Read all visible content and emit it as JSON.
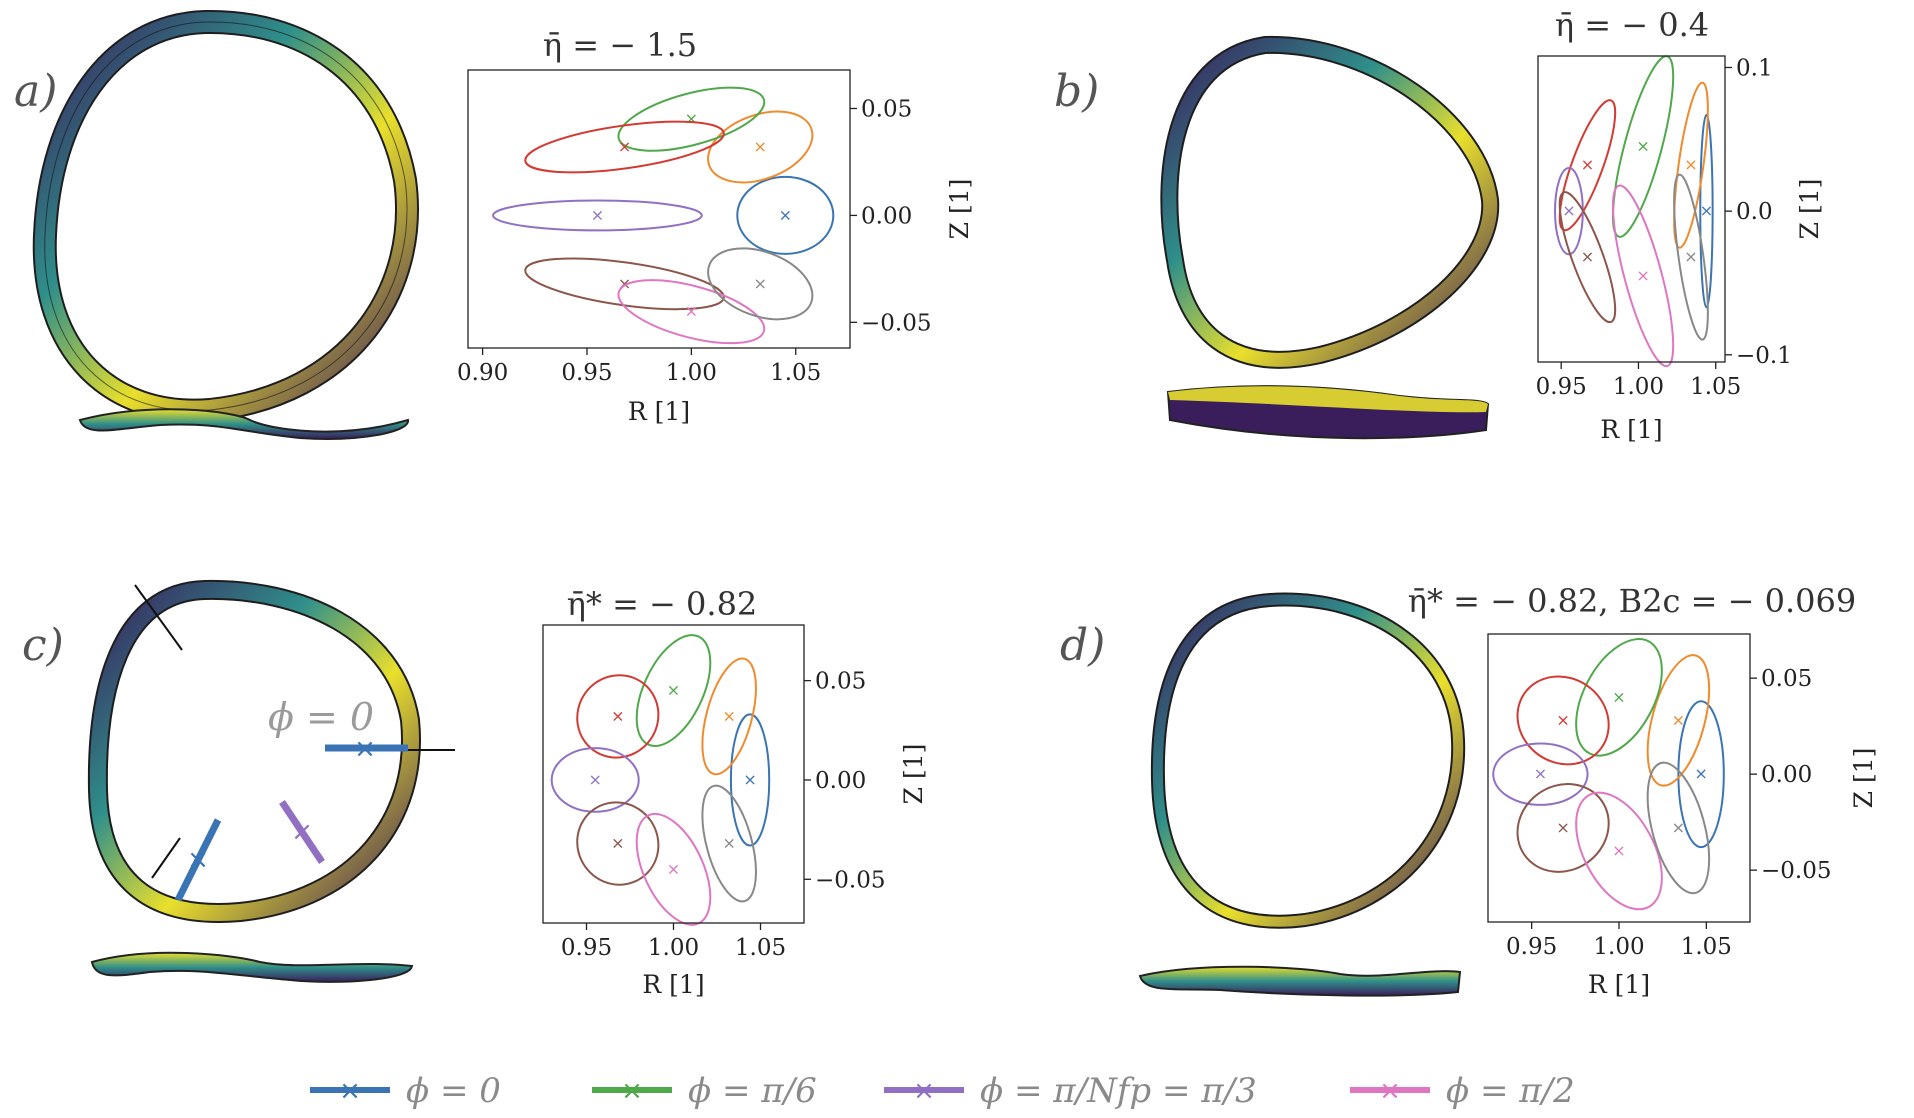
{
  "colors": {
    "blue": "#3a74b4",
    "orange": "#ef8b2c",
    "green": "#4fa84a",
    "red": "#d23b33",
    "purple": "#9170c4",
    "brown": "#8c564b",
    "pink": "#df76c2",
    "gray": "#888888",
    "stel_yellow": "#f2e22a",
    "stel_green": "#3fb98a",
    "stel_dark": "#3a1e5c"
  },
  "panels": [
    {
      "id": "a",
      "label": "a)",
      "title": "η̄ = − 1.5",
      "xlabel": "R [1]",
      "ylabel": "Z [1]",
      "xticks": [
        "0.90",
        "0.95",
        "1.00",
        "1.05"
      ],
      "yticks": [
        "0.05",
        "0.00",
        "−0.05"
      ],
      "xrange": [
        0.893,
        1.076
      ],
      "yrange": [
        -0.062,
        0.068
      ],
      "xtickvals": [
        0.9,
        0.95,
        1.0,
        1.05
      ],
      "ytickvals": [
        0.05,
        0.0,
        -0.05
      ],
      "shape": "ellipse",
      "ellipses": [
        {
          "color": "blue",
          "cx": 1.045,
          "cy": 0.0,
          "rx": 0.023,
          "ry": 0.018,
          "ang": 0
        },
        {
          "color": "orange",
          "cx": 1.033,
          "cy": 0.032,
          "rx": 0.026,
          "ry": 0.015,
          "ang": 20
        },
        {
          "color": "green",
          "cx": 1.0,
          "cy": 0.045,
          "rx": 0.036,
          "ry": 0.012,
          "ang": 15
        },
        {
          "color": "red",
          "cx": 0.968,
          "cy": 0.032,
          "rx": 0.048,
          "ry": 0.01,
          "ang": 8
        },
        {
          "color": "purple",
          "cx": 0.955,
          "cy": 0.0,
          "rx": 0.05,
          "ry": 0.007,
          "ang": 0
        },
        {
          "color": "brown",
          "cx": 0.968,
          "cy": -0.032,
          "rx": 0.048,
          "ry": 0.01,
          "ang": -8
        },
        {
          "color": "pink",
          "cx": 1.0,
          "cy": -0.045,
          "rx": 0.036,
          "ry": 0.012,
          "ang": -15
        },
        {
          "color": "gray",
          "cx": 1.033,
          "cy": -0.032,
          "rx": 0.026,
          "ry": 0.015,
          "ang": -20
        }
      ]
    },
    {
      "id": "b",
      "label": "b)",
      "title": "η̄ = − 0.4",
      "xlabel": "R [1]",
      "ylabel": "Z [1]",
      "xticks": [
        "0.95",
        "1.00",
        "1.05"
      ],
      "yticks": [
        "0.1",
        "0.0",
        "−0.1"
      ],
      "xrange": [
        0.935,
        1.056
      ],
      "yrange": [
        -0.105,
        0.108
      ],
      "xtickvals": [
        0.95,
        1.0,
        1.05
      ],
      "ytickvals": [
        0.1,
        0.0,
        -0.1
      ],
      "shape": "ellipse",
      "ellipses": [
        {
          "color": "blue",
          "cx": 1.044,
          "cy": 0.0,
          "rx": 0.004,
          "ry": 0.067,
          "ang": 0
        },
        {
          "color": "orange",
          "cx": 1.034,
          "cy": 0.032,
          "rx": 0.008,
          "ry": 0.058,
          "ang": -8
        },
        {
          "color": "green",
          "cx": 1.003,
          "cy": 0.045,
          "rx": 0.012,
          "ry": 0.065,
          "ang": -15
        },
        {
          "color": "red",
          "cx": 0.967,
          "cy": 0.032,
          "rx": 0.01,
          "ry": 0.048,
          "ang": -20
        },
        {
          "color": "purple",
          "cx": 0.955,
          "cy": 0.0,
          "rx": 0.009,
          "ry": 0.03,
          "ang": 0
        },
        {
          "color": "brown",
          "cx": 0.967,
          "cy": -0.032,
          "rx": 0.01,
          "ry": 0.048,
          "ang": 20
        },
        {
          "color": "pink",
          "cx": 1.003,
          "cy": -0.045,
          "rx": 0.012,
          "ry": 0.065,
          "ang": 15
        },
        {
          "color": "gray",
          "cx": 1.034,
          "cy": -0.032,
          "rx": 0.008,
          "ry": 0.058,
          "ang": 8
        }
      ]
    },
    {
      "id": "c",
      "label": "c)",
      "title": "η̄* = − 0.82",
      "xlabel": "R [1]",
      "ylabel": "Z [1]",
      "xticks": [
        "0.95",
        "1.00",
        "1.05"
      ],
      "yticks": [
        "0.05",
        "0.00",
        "−0.05"
      ],
      "xrange": [
        0.925,
        1.075
      ],
      "yrange": [
        -0.072,
        0.078
      ],
      "xtickvals": [
        0.95,
        1.0,
        1.05
      ],
      "ytickvals": [
        0.05,
        0.0,
        -0.05
      ],
      "shape": "ellipse",
      "ellipses": [
        {
          "color": "blue",
          "cx": 1.044,
          "cy": 0.0,
          "rx": 0.011,
          "ry": 0.033,
          "ang": 0
        },
        {
          "color": "orange",
          "cx": 1.032,
          "cy": 0.032,
          "rx": 0.013,
          "ry": 0.03,
          "ang": -15
        },
        {
          "color": "green",
          "cx": 1.0,
          "cy": 0.045,
          "rx": 0.017,
          "ry": 0.03,
          "ang": -25
        },
        {
          "color": "red",
          "cx": 0.968,
          "cy": 0.032,
          "rx": 0.023,
          "ry": 0.021,
          "ang": -35
        },
        {
          "color": "purple",
          "cx": 0.955,
          "cy": 0.0,
          "rx": 0.025,
          "ry": 0.016,
          "ang": 0
        },
        {
          "color": "brown",
          "cx": 0.968,
          "cy": -0.032,
          "rx": 0.023,
          "ry": 0.021,
          "ang": 35
        },
        {
          "color": "pink",
          "cx": 1.0,
          "cy": -0.045,
          "rx": 0.017,
          "ry": 0.03,
          "ang": 25
        },
        {
          "color": "gray",
          "cx": 1.032,
          "cy": -0.032,
          "rx": 0.013,
          "ry": 0.03,
          "ang": 15
        }
      ]
    },
    {
      "id": "d",
      "label": "d)",
      "title": "η̄* = − 0.82,    B2c = − 0.069",
      "xlabel": "R [1]",
      "ylabel": "Z [1]",
      "xticks": [
        "0.95",
        "1.00",
        "1.05"
      ],
      "yticks": [
        "0.05",
        "0.00",
        "−0.05"
      ],
      "xrange": [
        0.925,
        1.075
      ],
      "yrange": [
        -0.077,
        0.073
      ],
      "xtickvals": [
        0.95,
        1.0,
        1.05
      ],
      "ytickvals": [
        0.05,
        0.0,
        -0.05
      ],
      "shape": "ellipse",
      "ellipses": [
        {
          "color": "blue",
          "cx": 1.047,
          "cy": 0.0,
          "rx": 0.013,
          "ry": 0.038,
          "ang": 0
        },
        {
          "color": "orange",
          "cx": 1.034,
          "cy": 0.028,
          "rx": 0.015,
          "ry": 0.035,
          "ang": -15
        },
        {
          "color": "green",
          "cx": 1.0,
          "cy": 0.04,
          "rx": 0.02,
          "ry": 0.033,
          "ang": -28
        },
        {
          "color": "red",
          "cx": 0.968,
          "cy": 0.028,
          "rx": 0.027,
          "ry": 0.022,
          "ang": -35
        },
        {
          "color": "purple",
          "cx": 0.955,
          "cy": 0.0,
          "rx": 0.027,
          "ry": 0.016,
          "ang": 0
        },
        {
          "color": "brown",
          "cx": 0.968,
          "cy": -0.028,
          "rx": 0.027,
          "ry": 0.022,
          "ang": 35
        },
        {
          "color": "pink",
          "cx": 1.0,
          "cy": -0.04,
          "rx": 0.02,
          "ry": 0.033,
          "ang": 28
        },
        {
          "color": "gray",
          "cx": 1.034,
          "cy": -0.028,
          "rx": 0.015,
          "ry": 0.035,
          "ang": 15
        }
      ]
    }
  ],
  "annotations": {
    "phi0_label": "ϕ = 0"
  },
  "legend": [
    {
      "color": "blue",
      "label": "ϕ = 0"
    },
    {
      "color": "green",
      "label": "ϕ = π/6"
    },
    {
      "color": "purple",
      "label": "ϕ = π/Nfp = π/3"
    },
    {
      "color": "pink",
      "label": "ϕ = π/2"
    }
  ]
}
